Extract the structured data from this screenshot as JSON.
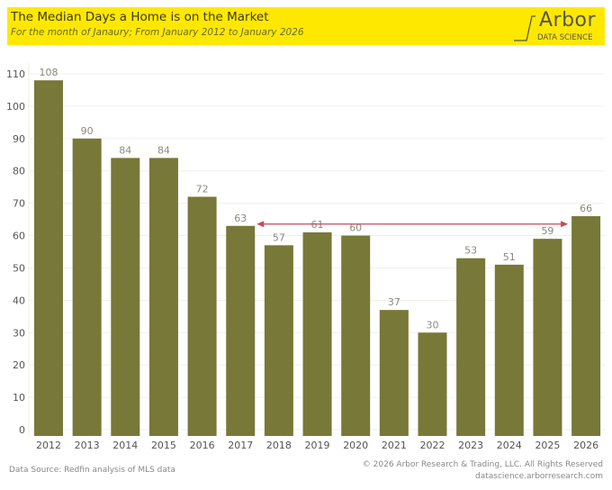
{
  "header": {
    "title": "The Median Days a Home is on the Market",
    "subtitle": "For the month of Janaury; From January 2012 to January 2026",
    "logo_text": "Arbor",
    "logo_sub": "DATA SCIENCE"
  },
  "footer": {
    "source": "Data Source: Redfin analysis of MLS data",
    "copyright": "© 2026 Arbor Research & Trading, LLC. All Rights Reserved",
    "website": "datascience.arborresearch.com"
  },
  "colors": {
    "header_bg": "#ffe800",
    "bar": "#787838",
    "arrow": "#c8485a",
    "label": "#8a8a80",
    "axis_text": "#555555"
  },
  "chart_data": {
    "type": "bar",
    "title": "The Median Days a Home is on the Market",
    "subtitle": "For the month of Janaury; From January 2012 to January 2026",
    "xlabel": "",
    "ylabel": "",
    "categories": [
      "2012",
      "2013",
      "2014",
      "2015",
      "2016",
      "2017",
      "2018",
      "2019",
      "2020",
      "2021",
      "2022",
      "2023",
      "2024",
      "2025",
      "2026"
    ],
    "values": [
      108,
      90,
      84,
      84,
      72,
      63,
      57,
      61,
      60,
      37,
      30,
      53,
      51,
      59,
      66
    ],
    "ylim": [
      0,
      110
    ],
    "yticks": [
      0,
      10,
      20,
      30,
      40,
      50,
      60,
      70,
      80,
      90,
      100,
      110
    ],
    "grid": true,
    "legend": "none",
    "annotations": [
      {
        "type": "double-arrow",
        "from": "2017",
        "to": "2026",
        "y": 63
      }
    ]
  }
}
